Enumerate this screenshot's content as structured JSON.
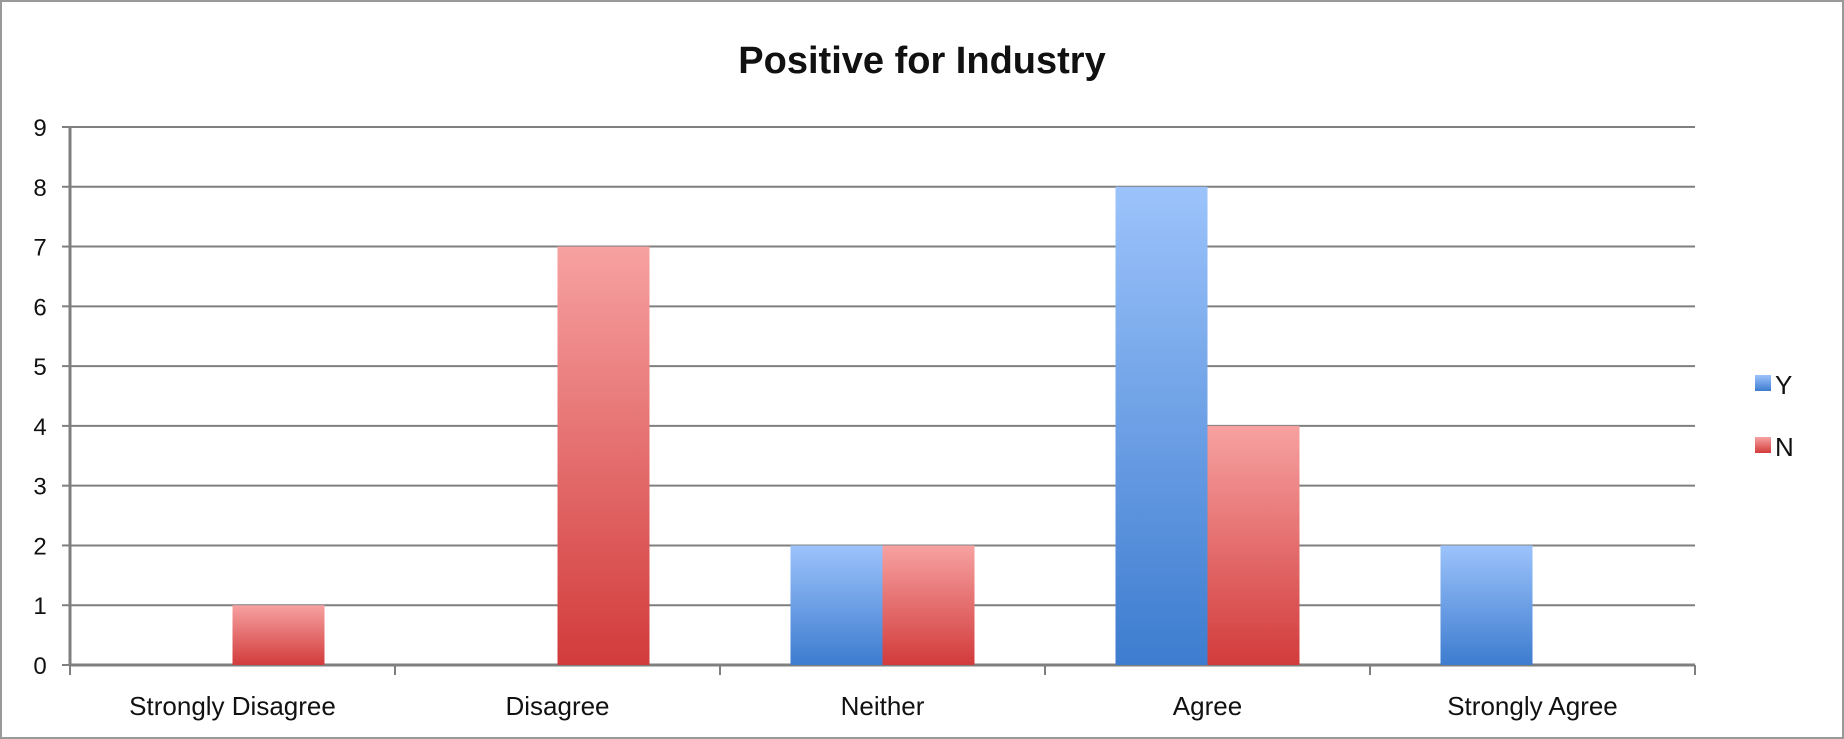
{
  "chart_data": {
    "type": "bar",
    "title": "Positive for Industry",
    "xlabel": "",
    "ylabel": "",
    "categories": [
      "Strongly Disagree",
      "Disagree",
      "Neither",
      "Agree",
      "Strongly Agree"
    ],
    "series": [
      {
        "name": "Y",
        "values": [
          0,
          0,
          2,
          8,
          2
        ],
        "color": "#4f8fe0"
      },
      {
        "name": "N",
        "values": [
          1,
          7,
          2,
          4,
          0
        ],
        "color": "#e05252"
      }
    ],
    "ylim": [
      0,
      9
    ],
    "yticks": [
      "0",
      "1",
      "2",
      "3",
      "4",
      "5",
      "6",
      "7",
      "8",
      "9"
    ],
    "grid": true,
    "legend_position": "right"
  }
}
